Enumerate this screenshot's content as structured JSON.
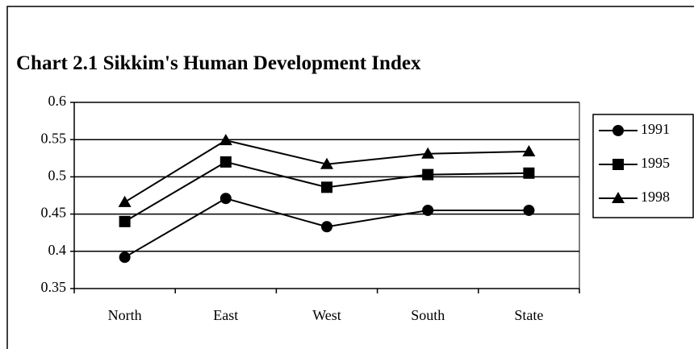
{
  "chart_data": {
    "type": "line",
    "title": "Chart 2.1 Sikkim's Human Development Index",
    "categories": [
      "North",
      "East",
      "West",
      "South",
      "State"
    ],
    "series": [
      {
        "name": "1991",
        "color": "#000000",
        "marker": "circle",
        "values": [
          0.392,
          0.471,
          0.433,
          0.455,
          0.455
        ]
      },
      {
        "name": "1995",
        "color": "#000000",
        "marker": "square",
        "values": [
          0.44,
          0.52,
          0.486,
          0.503,
          0.505
        ]
      },
      {
        "name": "1998",
        "color": "#000000",
        "marker": "triangle",
        "values": [
          0.466,
          0.549,
          0.517,
          0.531,
          0.534
        ]
      }
    ],
    "ylim": [
      0.35,
      0.6
    ],
    "yticks": [
      0.35,
      0.4,
      0.45,
      0.5,
      0.55,
      0.6
    ],
    "grid": true,
    "legend": "right"
  }
}
